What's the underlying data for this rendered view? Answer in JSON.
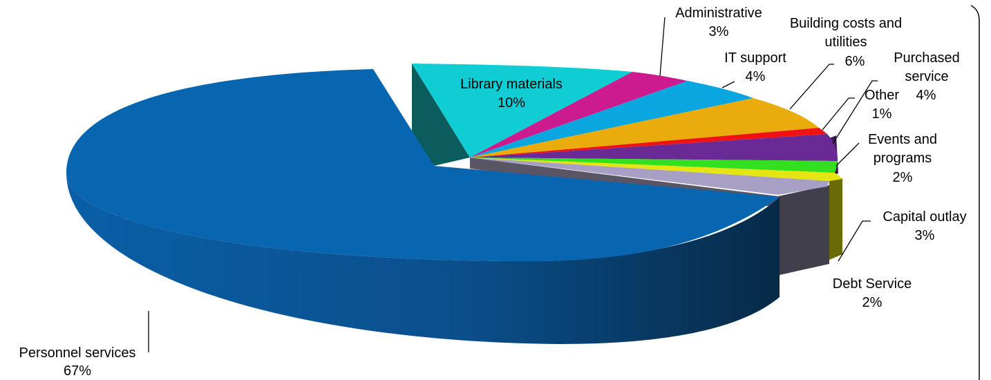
{
  "chart_data": {
    "type": "pie",
    "style": "3d-exploded",
    "legend": "none",
    "slices": [
      {
        "label_lines": [
          "Personnel services"
        ],
        "pct_label": "67%",
        "value": 67,
        "color": "#0866b0",
        "side_color": "#0b4f8c",
        "exploded": true
      },
      {
        "label_lines": [
          "Library materials"
        ],
        "pct_label": "10%",
        "value": 10,
        "color": "#10cdd4",
        "side_color": "#0a5a5a"
      },
      {
        "label_lines": [
          "Administrative"
        ],
        "pct_label": "3%",
        "value": 3,
        "color": "#cc1a8f",
        "side_color": "#7a0f55"
      },
      {
        "label_lines": [
          "IT support"
        ],
        "pct_label": "4%",
        "value": 4,
        "color": "#0aa6e0",
        "side_color": "#06648a"
      },
      {
        "label_lines": [
          "Building costs and",
          "utilities"
        ],
        "pct_label": "6%",
        "value": 6,
        "color": "#e9ac0c",
        "side_color": "#8a6607"
      },
      {
        "label_lines": [
          "Other"
        ],
        "pct_label": "1%",
        "value": 1,
        "color": "#ef1212",
        "side_color": "#8a0a0a"
      },
      {
        "label_lines": [
          "Purchased",
          "service"
        ],
        "pct_label": "4%",
        "value": 4,
        "color": "#6a2a95",
        "side_color": "#3f1858"
      },
      {
        "label_lines": [
          "Events and",
          "programs"
        ],
        "pct_label": "2%",
        "value": 2,
        "color": "#33e01f",
        "side_color": "#1d8012"
      },
      {
        "label_lines": [
          "Capital outlay"
        ],
        "pct_label": "3%",
        "value": 3,
        "color": "#e5e514",
        "side_color": "#6a6a06"
      },
      {
        "label_lines": [
          "Debt Service"
        ],
        "pct_label": "2%",
        "value": 2,
        "color": "#a8a0c4",
        "side_color": "#423f4d"
      }
    ]
  }
}
